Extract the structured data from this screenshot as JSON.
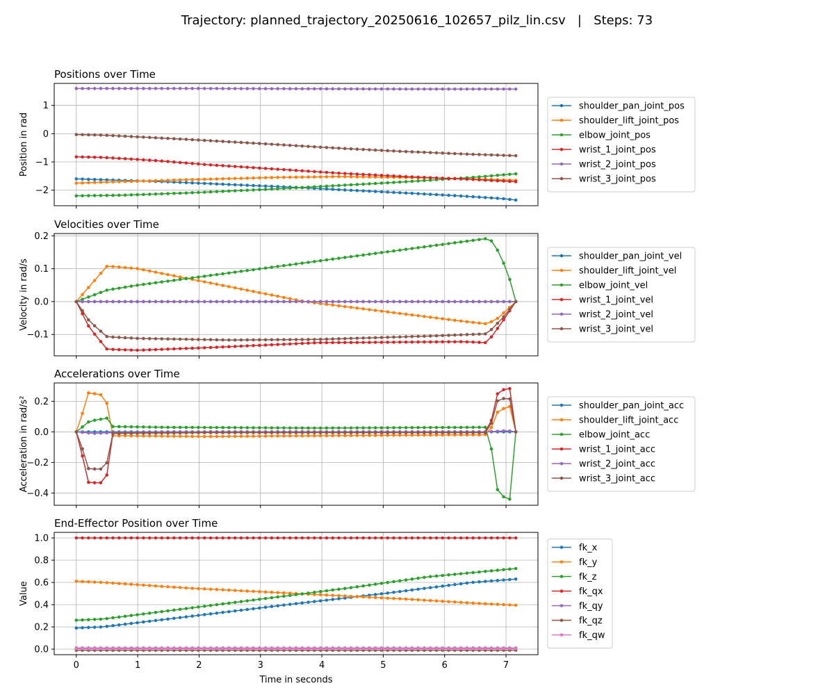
{
  "figure": {
    "suptitle": "Trajectory: planned_trajectory_20250616_102657_pilz_lin.csv   |   Steps: 73",
    "xlabel": "Time in seconds",
    "x_ticks": [
      0,
      1,
      2,
      3,
      4,
      5,
      6,
      7
    ],
    "x_range": [
      -0.36,
      7.52
    ]
  },
  "chart_data": [
    {
      "type": "line",
      "title": "Positions over Time",
      "ylabel": "Position in rad",
      "ylim": [
        -2.55,
        1.78
      ],
      "yticks": [
        1,
        0,
        -1,
        -2
      ],
      "ytick_labels": [
        "1",
        "0",
        "−1",
        "−2"
      ],
      "grid": true,
      "legend_position": "right",
      "x_start": 0,
      "x_end": 7.16,
      "points": 73,
      "series": [
        {
          "name": "shoulder_pan_joint_pos",
          "color": "#1f77b4",
          "values": [
            -1.6,
            -1.65,
            -1.7,
            -1.8,
            -1.9,
            -2.0,
            -2.1,
            -2.2,
            -2.3,
            -2.35
          ],
          "knots": [
            0,
            0.1,
            0.2,
            0.35,
            0.5,
            0.62,
            0.75,
            0.87,
            0.97,
            1.0
          ]
        },
        {
          "name": "shoulder_lift_joint_pos",
          "color": "#ff7f0e",
          "values": [
            -1.75,
            -1.7,
            -1.63,
            -1.55,
            -1.52,
            -1.55,
            -1.6,
            -1.65
          ],
          "knots": [
            0,
            0.1,
            0.25,
            0.45,
            0.6,
            0.75,
            0.9,
            1.0
          ]
        },
        {
          "name": "elbow_joint_pos",
          "color": "#2ca02c",
          "values": [
            -2.2,
            -2.18,
            -2.1,
            -1.98,
            -1.85,
            -1.7,
            -1.55,
            -1.42
          ],
          "knots": [
            0,
            0.1,
            0.25,
            0.42,
            0.58,
            0.75,
            0.9,
            1.0
          ]
        },
        {
          "name": "wrist_1_joint_pos",
          "color": "#d62728",
          "values": [
            -0.82,
            -0.84,
            -0.95,
            -1.1,
            -1.25,
            -1.4,
            -1.52,
            -1.62,
            -1.7
          ],
          "knots": [
            0,
            0.06,
            0.18,
            0.3,
            0.45,
            0.6,
            0.75,
            0.9,
            1.0
          ]
        },
        {
          "name": "wrist_2_joint_pos",
          "color": "#9467bd",
          "values": [
            1.6,
            1.6,
            1.59,
            1.58,
            1.58
          ],
          "knots": [
            0,
            0.25,
            0.5,
            0.75,
            1.0
          ]
        },
        {
          "name": "wrist_3_joint_pos",
          "color": "#8c564b",
          "values": [
            -0.03,
            -0.05,
            -0.2,
            -0.35,
            -0.5,
            -0.62,
            -0.73,
            -0.78
          ],
          "knots": [
            0,
            0.06,
            0.25,
            0.42,
            0.58,
            0.73,
            0.9,
            1.0
          ]
        }
      ]
    },
    {
      "type": "line",
      "title": "Velocities over Time",
      "ylabel": "Velocity in rad/s",
      "ylim": [
        -0.165,
        0.207
      ],
      "yticks": [
        0.2,
        0.1,
        0.0,
        -0.1
      ],
      "ytick_labels": [
        "0.2",
        "0.1",
        "0.0",
        "−0.1"
      ],
      "grid": true,
      "legend_position": "right",
      "x_start": 0,
      "x_end": 7.16,
      "points": 73,
      "series": [
        {
          "name": "shoulder_pan_joint_vel",
          "color": "#1f77b4",
          "values": [
            0,
            0,
            0
          ],
          "knots": [
            0,
            0.5,
            1.0
          ]
        },
        {
          "name": "shoulder_lift_joint_vel",
          "color": "#ff7f0e",
          "values": [
            0,
            0.108,
            0.1,
            0.0,
            -0.06,
            -0.068,
            -0.05,
            0
          ],
          "knots": [
            0,
            0.07,
            0.14,
            0.52,
            0.88,
            0.935,
            0.96,
            1.0
          ]
        },
        {
          "name": "elbow_joint_vel",
          "color": "#2ca02c",
          "values": [
            0,
            0.02,
            0.035,
            0.05,
            0.192,
            0.18,
            0.095,
            0.05,
            0
          ],
          "knots": [
            0,
            0.04,
            0.07,
            0.14,
            0.935,
            0.95,
            0.98,
            0.99,
            1.0
          ]
        },
        {
          "name": "wrist_1_joint_vel",
          "color": "#d62728",
          "values": [
            0,
            -0.08,
            -0.145,
            -0.148,
            -0.14,
            -0.125,
            -0.122,
            -0.125,
            -0.06,
            0
          ],
          "knots": [
            0,
            0.03,
            0.07,
            0.14,
            0.3,
            0.55,
            0.88,
            0.935,
            0.97,
            1.0
          ]
        },
        {
          "name": "wrist_2_joint_vel",
          "color": "#9467bd",
          "values": [
            0,
            0,
            0
          ],
          "knots": [
            0,
            0.5,
            1.0
          ]
        },
        {
          "name": "wrist_3_joint_vel",
          "color": "#8c564b",
          "values": [
            0,
            -0.06,
            -0.107,
            -0.112,
            -0.117,
            -0.115,
            -0.105,
            -0.098,
            -0.05,
            0
          ],
          "knots": [
            0,
            0.03,
            0.07,
            0.14,
            0.35,
            0.55,
            0.8,
            0.935,
            0.97,
            1.0
          ]
        }
      ]
    },
    {
      "type": "line",
      "title": "Accelerations over Time",
      "ylabel": "Acceleration in rad/s²",
      "ylim": [
        -0.48,
        0.32
      ],
      "yticks": [
        0.2,
        0.0,
        -0.2,
        -0.4
      ],
      "ytick_labels": [
        "0.2",
        "0.0",
        "−0.2",
        "−0.4"
      ],
      "grid": true,
      "legend_position": "right",
      "x_start": 0,
      "x_end": 7.16,
      "points": 73,
      "series": [
        {
          "name": "shoulder_pan_joint_acc",
          "color": "#1f77b4",
          "values": [
            0,
            0,
            0
          ],
          "knots": [
            0,
            0.5,
            1.0
          ]
        },
        {
          "name": "shoulder_lift_joint_acc",
          "color": "#ff7f0e",
          "values": [
            0,
            0.13,
            0.255,
            0.245,
            0.185,
            -0.025,
            -0.03,
            -0.02,
            -0.02,
            0.03,
            0.14,
            0.17,
            0
          ],
          "knots": [
            0,
            0.015,
            0.027,
            0.055,
            0.07,
            0.082,
            0.3,
            0.85,
            0.93,
            0.945,
            0.96,
            0.99,
            1.0
          ]
        },
        {
          "name": "elbow_joint_acc",
          "color": "#2ca02c",
          "values": [
            0,
            0.035,
            0.07,
            0.09,
            0.035,
            0.03,
            0.025,
            0.03,
            -0.12,
            -0.41,
            -0.445,
            0
          ],
          "knots": [
            0,
            0.015,
            0.03,
            0.07,
            0.082,
            0.2,
            0.55,
            0.935,
            0.945,
            0.96,
            0.99,
            1.0
          ]
        },
        {
          "name": "wrist_1_joint_acc",
          "color": "#d62728",
          "values": [
            0,
            -0.17,
            -0.33,
            -0.335,
            -0.28,
            -0.01,
            0.0,
            0.0,
            0.08,
            0.27,
            0.285,
            0
          ],
          "knots": [
            0,
            0.015,
            0.027,
            0.055,
            0.07,
            0.082,
            0.3,
            0.935,
            0.945,
            0.96,
            0.99,
            1.0
          ]
        },
        {
          "name": "wrist_2_joint_acc",
          "color": "#9467bd",
          "values": [
            0,
            -0.01,
            -0.005,
            0.0,
            0.0,
            0.008,
            0
          ],
          "knots": [
            0,
            0.04,
            0.08,
            0.2,
            0.935,
            0.98,
            1.0
          ]
        },
        {
          "name": "wrist_3_joint_acc",
          "color": "#8c564b",
          "values": [
            0,
            -0.12,
            -0.24,
            -0.245,
            -0.2,
            -0.01,
            -0.005,
            -0.005,
            0.06,
            0.22,
            0.215,
            0
          ],
          "knots": [
            0,
            0.015,
            0.027,
            0.055,
            0.07,
            0.082,
            0.3,
            0.935,
            0.945,
            0.96,
            0.99,
            1.0
          ]
        }
      ]
    },
    {
      "type": "line",
      "title": "End-Effector Position over Time",
      "ylabel": "Value",
      "ylim": [
        -0.05,
        1.05
      ],
      "yticks": [
        1.0,
        0.8,
        0.6,
        0.4,
        0.2,
        0.0
      ],
      "ytick_labels": [
        "1.0",
        "0.8",
        "0.6",
        "0.4",
        "0.2",
        "0.0"
      ],
      "grid": true,
      "legend_position": "right",
      "x_start": 0,
      "x_end": 7.16,
      "points": 73,
      "series": [
        {
          "name": "fk_x",
          "color": "#1f77b4",
          "values": [
            0.19,
            0.2,
            0.3,
            0.4,
            0.5,
            0.6,
            0.63
          ],
          "knots": [
            0,
            0.06,
            0.27,
            0.48,
            0.7,
            0.9,
            1.0
          ]
        },
        {
          "name": "fk_y",
          "color": "#ff7f0e",
          "values": [
            0.61,
            0.6,
            0.55,
            0.5,
            0.45,
            0.41,
            0.395
          ],
          "knots": [
            0,
            0.06,
            0.25,
            0.5,
            0.75,
            0.92,
            1.0
          ]
        },
        {
          "name": "fk_z",
          "color": "#2ca02c",
          "values": [
            0.26,
            0.27,
            0.35,
            0.45,
            0.55,
            0.65,
            0.725
          ],
          "knots": [
            0,
            0.06,
            0.22,
            0.42,
            0.62,
            0.8,
            1.0
          ]
        },
        {
          "name": "fk_qx",
          "color": "#d62728",
          "values": [
            1.0,
            1.0
          ],
          "knots": [
            0,
            1.0
          ]
        },
        {
          "name": "fk_qy",
          "color": "#9467bd",
          "values": [
            0.01,
            0.01
          ],
          "knots": [
            0,
            1.0
          ]
        },
        {
          "name": "fk_qz",
          "color": "#8c564b",
          "values": [
            -0.01,
            -0.01
          ],
          "knots": [
            0,
            1.0
          ]
        },
        {
          "name": "fk_qw",
          "color": "#e377c2",
          "values": [
            0.005,
            0.005
          ],
          "knots": [
            0,
            1.0
          ]
        }
      ]
    }
  ]
}
